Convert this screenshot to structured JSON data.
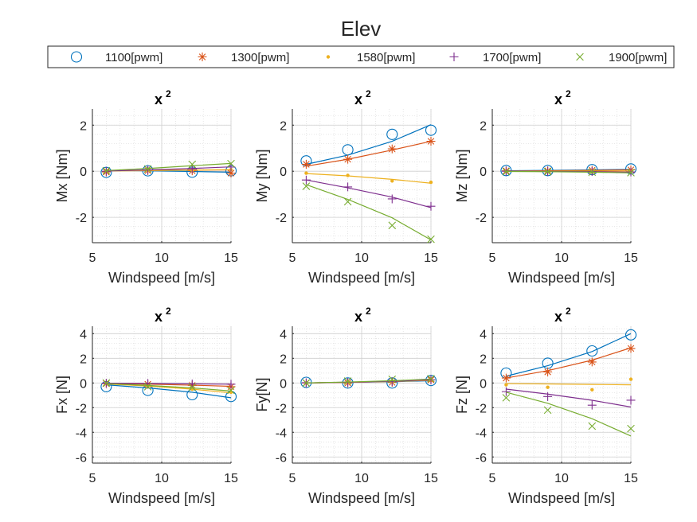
{
  "figure_title": "Elev",
  "legend": [
    {
      "label": "1100[pwm]",
      "marker": "circle",
      "color": "#0072BD"
    },
    {
      "label": "1300[pwm]",
      "marker": "asterisk",
      "color": "#D95319"
    },
    {
      "label": "1580[pwm]",
      "marker": "dot",
      "color": "#EDB120"
    },
    {
      "label": "1700[pwm]",
      "marker": "plus",
      "color": "#7E2F8E"
    },
    {
      "label": "1900[pwm]",
      "marker": "cross",
      "color": "#77AC30"
    }
  ],
  "chart_data": [
    {
      "type": "scatter",
      "title": "x",
      "title_sup": "2",
      "xlabel": "Windspeed [m/s]",
      "ylabel": "Mx [Nm]",
      "xlim": [
        5,
        15
      ],
      "ylim": [
        -3.1,
        2.7
      ],
      "xticks": [
        5,
        10,
        15
      ],
      "yticks": [
        -2,
        0,
        2
      ],
      "x": [
        6,
        9,
        12.2,
        15
      ],
      "series": [
        {
          "name": "1100[pwm]",
          "values": [
            -0.05,
            0.02,
            -0.04,
            0.02
          ],
          "fit": [
            0.04,
            0.02,
            -0.01,
            -0.04
          ]
        },
        {
          "name": "1300[pwm]",
          "values": [
            -0.03,
            0.03,
            0.02,
            -0.08
          ],
          "fit": [
            0.03,
            0.04,
            0.05,
            0.06
          ]
        },
        {
          "name": "1580[pwm]",
          "values": [
            0.01,
            0.03,
            0.05,
            0.07
          ],
          "fit": [
            0.01,
            0.03,
            0.05,
            0.07
          ]
        },
        {
          "name": "1700[pwm]",
          "values": [
            0.0,
            0.05,
            0.1,
            0.18
          ],
          "fit": [
            0.01,
            0.06,
            0.12,
            0.19
          ]
        },
        {
          "name": "1900[pwm]",
          "values": [
            0.02,
            0.1,
            0.3,
            0.33
          ],
          "fit": [
            0.03,
            0.12,
            0.24,
            0.34
          ]
        }
      ]
    },
    {
      "type": "scatter",
      "title": "x",
      "title_sup": "2",
      "xlabel": "Windspeed [m/s]",
      "ylabel": "My [Nm]",
      "xlim": [
        5,
        15
      ],
      "ylim": [
        -3.1,
        2.7
      ],
      "xticks": [
        5,
        10,
        15
      ],
      "yticks": [
        -2,
        0,
        2
      ],
      "x": [
        6,
        9,
        12.2,
        15
      ],
      "series": [
        {
          "name": "1100[pwm]",
          "values": [
            0.45,
            0.93,
            1.6,
            1.78
          ],
          "fit": [
            0.3,
            0.7,
            1.3,
            2.02
          ]
        },
        {
          "name": "1300[pwm]",
          "values": [
            0.3,
            0.52,
            0.97,
            1.3
          ],
          "fit": [
            0.22,
            0.52,
            0.92,
            1.3
          ]
        },
        {
          "name": "1580[pwm]",
          "values": [
            -0.08,
            -0.18,
            -0.42,
            -0.48
          ],
          "fit": [
            -0.1,
            -0.2,
            -0.35,
            -0.52
          ]
        },
        {
          "name": "1700[pwm]",
          "values": [
            -0.38,
            -0.68,
            -1.2,
            -1.52
          ],
          "fit": [
            -0.38,
            -0.72,
            -1.12,
            -1.58
          ]
        },
        {
          "name": "1900[pwm]",
          "values": [
            -0.65,
            -1.32,
            -2.35,
            -2.95
          ],
          "fit": [
            -0.58,
            -1.22,
            -2.02,
            -2.98
          ]
        }
      ]
    },
    {
      "type": "scatter",
      "title": "x",
      "title_sup": "2",
      "xlabel": "Windspeed [m/s]",
      "ylabel": "Mz [Nm]",
      "xlim": [
        5,
        15
      ],
      "ylim": [
        -3.1,
        2.7
      ],
      "xticks": [
        5,
        10,
        15
      ],
      "yticks": [
        -2,
        0,
        2
      ],
      "x": [
        6,
        9,
        12.2,
        15
      ],
      "series": [
        {
          "name": "1100[pwm]",
          "values": [
            0.03,
            0.03,
            0.07,
            0.1
          ],
          "fit": [
            0.02,
            0.04,
            0.06,
            0.08
          ]
        },
        {
          "name": "1300[pwm]",
          "values": [
            0.02,
            0.02,
            0.04,
            0.06
          ],
          "fit": [
            0.01,
            0.02,
            0.04,
            0.06
          ]
        },
        {
          "name": "1580[pwm]",
          "values": [
            0.0,
            0.0,
            0.01,
            0.0
          ],
          "fit": [
            0.0,
            0.0,
            0.01,
            0.01
          ]
        },
        {
          "name": "1700[pwm]",
          "values": [
            0.0,
            -0.01,
            -0.01,
            -0.03
          ],
          "fit": [
            0.0,
            -0.01,
            -0.02,
            -0.04
          ]
        },
        {
          "name": "1900[pwm]",
          "values": [
            -0.02,
            -0.02,
            -0.04,
            -0.06
          ],
          "fit": [
            -0.01,
            -0.02,
            -0.04,
            -0.07
          ]
        }
      ]
    },
    {
      "type": "scatter",
      "title": "x",
      "title_sup": "2",
      "xlabel": "Windspeed [m/s]",
      "ylabel": "Fx [N]",
      "xlim": [
        5,
        15
      ],
      "ylim": [
        -6.5,
        4.6
      ],
      "xticks": [
        5,
        10,
        15
      ],
      "yticks": [
        -6,
        -4,
        -2,
        0,
        2,
        4
      ],
      "x": [
        6,
        9,
        12.2,
        15
      ],
      "series": [
        {
          "name": "1100[pwm]",
          "values": [
            -0.3,
            -0.6,
            -0.95,
            -1.1
          ],
          "fit": [
            -0.15,
            -0.4,
            -0.75,
            -1.2
          ]
        },
        {
          "name": "1300[pwm]",
          "values": [
            -0.05,
            -0.1,
            -0.2,
            -0.3
          ],
          "fit": [
            -0.05,
            -0.1,
            -0.18,
            -0.27
          ]
        },
        {
          "name": "1580[pwm]",
          "values": [
            -0.05,
            -0.25,
            -0.5,
            -0.75
          ],
          "fit": [
            -0.08,
            -0.25,
            -0.5,
            -0.8
          ]
        },
        {
          "name": "1700[pwm]",
          "values": [
            -0.02,
            -0.04,
            -0.08,
            -0.1
          ],
          "fit": [
            -0.02,
            -0.04,
            -0.07,
            -0.1
          ]
        },
        {
          "name": "1900[pwm]",
          "values": [
            0.0,
            -0.3,
            -0.35,
            -0.6
          ],
          "fit": [
            -0.05,
            -0.2,
            -0.4,
            -0.65
          ]
        }
      ]
    },
    {
      "type": "scatter",
      "title": "x",
      "title_sup": "2",
      "xlabel": "Windspeed [m/s]",
      "ylabel": "Fy[N]",
      "xlim": [
        5,
        15
      ],
      "ylim": [
        -6.5,
        4.6
      ],
      "xticks": [
        5,
        10,
        15
      ],
      "yticks": [
        -6,
        -4,
        -2,
        0,
        2,
        4
      ],
      "x": [
        6,
        9,
        12.2,
        15
      ],
      "series": [
        {
          "name": "1100[pwm]",
          "values": [
            0.05,
            0.0,
            0.0,
            0.2
          ],
          "fit": [
            0.0,
            0.05,
            0.1,
            0.18
          ]
        },
        {
          "name": "1300[pwm]",
          "values": [
            0.0,
            0.0,
            0.05,
            0.25
          ],
          "fit": [
            0.0,
            0.05,
            0.12,
            0.22
          ]
        },
        {
          "name": "1580[pwm]",
          "values": [
            0.0,
            0.05,
            0.1,
            0.2
          ],
          "fit": [
            0.0,
            0.05,
            0.12,
            0.22
          ]
        },
        {
          "name": "1700[pwm]",
          "values": [
            0.02,
            0.05,
            0.1,
            0.25
          ],
          "fit": [
            0.0,
            0.06,
            0.14,
            0.26
          ]
        },
        {
          "name": "1900[pwm]",
          "values": [
            0.0,
            0.15,
            0.3,
            0.35
          ],
          "fit": [
            0.0,
            0.08,
            0.18,
            0.32
          ]
        }
      ]
    },
    {
      "type": "scatter",
      "title": "x",
      "title_sup": "2",
      "xlabel": "Windspeed [m/s]",
      "ylabel": "Fz [N]",
      "xlim": [
        5,
        15
      ],
      "ylim": [
        -6.5,
        4.6
      ],
      "xticks": [
        5,
        10,
        15
      ],
      "yticks": [
        -6,
        -4,
        -2,
        0,
        2,
        4
      ],
      "x": [
        6,
        9,
        12.2,
        15
      ],
      "series": [
        {
          "name": "1100[pwm]",
          "values": [
            0.8,
            1.6,
            2.6,
            3.9
          ],
          "fit": [
            0.55,
            1.4,
            2.55,
            4.0
          ]
        },
        {
          "name": "1300[pwm]",
          "values": [
            0.4,
            0.9,
            1.7,
            2.8
          ],
          "fit": [
            0.4,
            1.0,
            1.85,
            2.85
          ]
        },
        {
          "name": "1580[pwm]",
          "values": [
            -0.15,
            -0.35,
            -0.55,
            0.3
          ],
          "fit": [
            -0.05,
            -0.08,
            -0.12,
            -0.15
          ]
        },
        {
          "name": "1700[pwm]",
          "values": [
            -0.7,
            -1.1,
            -1.8,
            -1.4
          ],
          "fit": [
            -0.5,
            -0.9,
            -1.4,
            -1.95
          ]
        },
        {
          "name": "1900[pwm]",
          "values": [
            -1.2,
            -2.2,
            -3.5,
            -3.7
          ],
          "fit": [
            -0.75,
            -1.65,
            -2.9,
            -4.3
          ]
        }
      ]
    }
  ]
}
